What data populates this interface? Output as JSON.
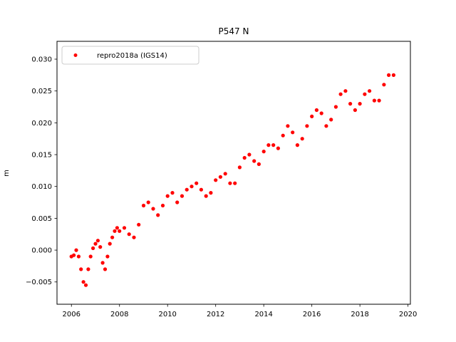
{
  "chart_data": {
    "type": "scatter",
    "title": "P547 N",
    "xlabel": "",
    "ylabel": "m",
    "xlim": [
      2005.4,
      2020.1
    ],
    "ylim": [
      -0.0085,
      0.0328
    ],
    "xticks": [
      2006,
      2008,
      2010,
      2012,
      2014,
      2016,
      2018,
      2020
    ],
    "xtick_labels": [
      "2006",
      "2008",
      "2010",
      "2012",
      "2014",
      "2016",
      "2018",
      "2020"
    ],
    "yticks": [
      -0.005,
      0.0,
      0.005,
      0.01,
      0.015,
      0.02,
      0.025,
      0.03
    ],
    "ytick_labels": [
      "−0.005",
      "0.000",
      "0.005",
      "0.010",
      "0.015",
      "0.020",
      "0.025",
      "0.030"
    ],
    "legend": {
      "position": "top-left",
      "entries": [
        "repro2018a (IGS14)"
      ]
    },
    "grid": false,
    "color": "#ff0000",
    "series": [
      {
        "name": "repro2018a (IGS14)",
        "x": [
          2006.0,
          2006.1,
          2006.2,
          2006.3,
          2006.4,
          2006.5,
          2006.6,
          2006.7,
          2006.8,
          2006.9,
          2007.0,
          2007.1,
          2007.2,
          2007.3,
          2007.4,
          2007.5,
          2007.6,
          2007.7,
          2007.8,
          2007.9,
          2008.0,
          2008.2,
          2008.4,
          2008.6,
          2008.8,
          2009.0,
          2009.2,
          2009.4,
          2009.6,
          2009.8,
          2010.0,
          2010.2,
          2010.4,
          2010.6,
          2010.8,
          2011.0,
          2011.2,
          2011.4,
          2011.6,
          2011.8,
          2012.0,
          2012.2,
          2012.4,
          2012.6,
          2012.8,
          2013.0,
          2013.2,
          2013.4,
          2013.6,
          2013.8,
          2014.0,
          2014.2,
          2014.4,
          2014.6,
          2014.8,
          2015.0,
          2015.2,
          2015.4,
          2015.6,
          2015.8,
          2016.0,
          2016.2,
          2016.4,
          2016.6,
          2016.8,
          2017.0,
          2017.2,
          2017.4,
          2017.6,
          2017.8,
          2018.0,
          2018.2,
          2018.4,
          2018.6,
          2018.8,
          2019.0,
          2019.2,
          2019.4
        ],
        "y": [
          -0.001,
          -0.0008,
          0.0,
          -0.001,
          -0.003,
          -0.005,
          -0.0055,
          -0.003,
          -0.001,
          0.0003,
          0.001,
          0.0015,
          0.0005,
          -0.002,
          -0.003,
          -0.001,
          0.001,
          0.002,
          0.003,
          0.0035,
          0.003,
          0.0035,
          0.0025,
          0.002,
          0.004,
          0.007,
          0.0075,
          0.0065,
          0.0055,
          0.007,
          0.0085,
          0.009,
          0.0075,
          0.0085,
          0.0095,
          0.01,
          0.0105,
          0.0095,
          0.0085,
          0.009,
          0.011,
          0.0115,
          0.012,
          0.0105,
          0.0105,
          0.013,
          0.0145,
          0.015,
          0.014,
          0.0135,
          0.0155,
          0.0165,
          0.0165,
          0.016,
          0.018,
          0.0195,
          0.0185,
          0.0165,
          0.0175,
          0.0195,
          0.021,
          0.022,
          0.0215,
          0.0195,
          0.0205,
          0.0225,
          0.0245,
          0.025,
          0.023,
          0.022,
          0.023,
          0.0245,
          0.025,
          0.0235,
          0.0235,
          0.026,
          0.0275,
          0.0275
        ]
      }
    ]
  }
}
